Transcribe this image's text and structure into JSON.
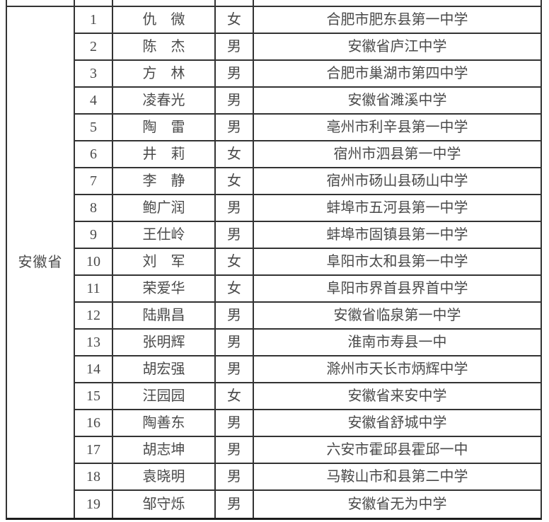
{
  "colors": {
    "background": "#ffffff",
    "border": "#333333",
    "border_strong": "#1c1c1c",
    "text": "#4a4a4a"
  },
  "table": {
    "province_label": "安徽省",
    "rows": [
      {
        "num": "1",
        "name": "仇　微",
        "gender": "女",
        "school": "合肥市肥东县第一中学"
      },
      {
        "num": "2",
        "name": "陈　杰",
        "gender": "男",
        "school": "安徽省庐江中学"
      },
      {
        "num": "3",
        "name": "方　林",
        "gender": "男",
        "school": "合肥市巢湖市第四中学"
      },
      {
        "num": "4",
        "name": "凌春光",
        "gender": "男",
        "school": "安徽省濉溪中学"
      },
      {
        "num": "5",
        "name": "陶　雷",
        "gender": "男",
        "school": "亳州市利辛县第一中学"
      },
      {
        "num": "6",
        "name": "井　莉",
        "gender": "女",
        "school": "宿州市泗县第一中学"
      },
      {
        "num": "7",
        "name": "李　静",
        "gender": "女",
        "school": "宿州市砀山县砀山中学"
      },
      {
        "num": "8",
        "name": "鲍广润",
        "gender": "男",
        "school": "蚌埠市五河县第一中学"
      },
      {
        "num": "9",
        "name": "王仕岭",
        "gender": "男",
        "school": "蚌埠市固镇县第一中学"
      },
      {
        "num": "10",
        "name": "刘　军",
        "gender": "女",
        "school": "阜阳市太和县第一中学"
      },
      {
        "num": "11",
        "name": "荣爱华",
        "gender": "女",
        "school": "阜阳市界首县界首中学"
      },
      {
        "num": "12",
        "name": "陆鼎昌",
        "gender": "男",
        "school": "安徽省临泉第一中学"
      },
      {
        "num": "13",
        "name": "张明辉",
        "gender": "男",
        "school": "淮南市寿县一中"
      },
      {
        "num": "14",
        "name": "胡宏强",
        "gender": "男",
        "school": "滁州市天长市炳辉中学"
      },
      {
        "num": "15",
        "name": "汪园园",
        "gender": "女",
        "school": "安徽省来安中学"
      },
      {
        "num": "16",
        "name": "陶善东",
        "gender": "男",
        "school": "安徽省舒城中学"
      },
      {
        "num": "17",
        "name": "胡志坤",
        "gender": "男",
        "school": "六安市霍邱县霍邱一中"
      },
      {
        "num": "18",
        "name": "袁晓明",
        "gender": "男",
        "school": "马鞍山市和县第二中学"
      },
      {
        "num": "19",
        "name": "邹守烁",
        "gender": "男",
        "school": "安徽省无为中学"
      }
    ]
  }
}
